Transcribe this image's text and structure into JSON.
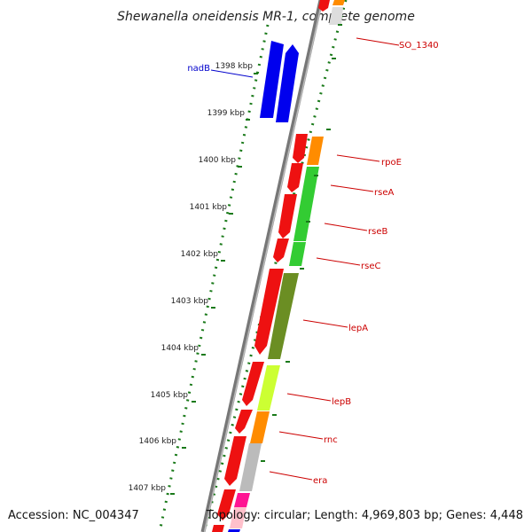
{
  "title": "Shewanella oneidensis MR-1, complete genome",
  "accession": "Accession: NC_004347",
  "topology": "Topology: circular; Length: 4,969,803 bp; Genes: 4,448",
  "colors": {
    "backbone": "#7a7a7a",
    "tick": "#1a7a1a",
    "red": "#ee1111",
    "blue": "#0000ee",
    "orange": "#ff8c00",
    "green": "#33cc33",
    "olive": "#6b8e23",
    "lime": "#ccff33",
    "grey": "#bbbbbb",
    "magenta": "#ff1493",
    "pink": "#ffc0cb",
    "label": "#cc0000",
    "blue_label": "#0000cc"
  },
  "ruler": [
    {
      "label": "1398 kbp"
    },
    {
      "label": "1399 kbp"
    },
    {
      "label": "1400 kbp"
    },
    {
      "label": "1401 kbp"
    },
    {
      "label": "1402 kbp"
    },
    {
      "label": "1403 kbp"
    },
    {
      "label": "1404 kbp"
    },
    {
      "label": "1405 kbp"
    },
    {
      "label": "1406 kbp"
    },
    {
      "label": "1407 kbp"
    }
  ],
  "labels": {
    "SO_1340": "SO_1340",
    "nadB": "nadB",
    "rpoE": "rpoE",
    "rseA": "rseA",
    "rseB": "rseB",
    "rseC": "rseC",
    "lepA": "lepA",
    "lepB": "lepB",
    "rnc": "rnc",
    "era": "era"
  }
}
